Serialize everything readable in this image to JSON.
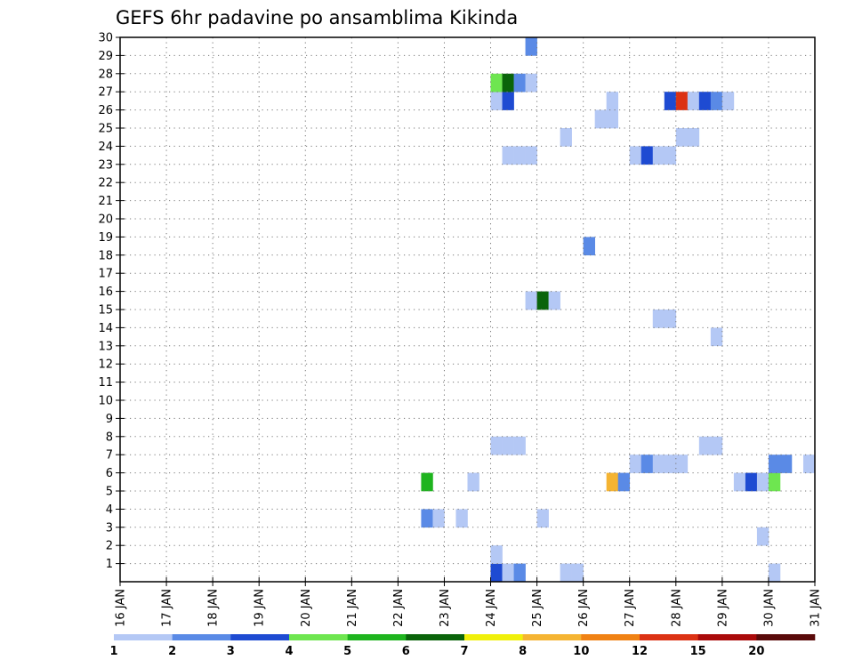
{
  "chart_data": {
    "type": "heatmap",
    "title": "GEFS 6hr padavine po ansamblima Kikinda",
    "xlabel": "",
    "ylabel": "",
    "x_ticks": [
      "16 JAN",
      "17 JAN",
      "18 JAN",
      "19 JAN",
      "20 JAN",
      "21 JAN",
      "22 JAN",
      "23 JAN",
      "24 JAN",
      "25 JAN",
      "26 JAN",
      "27 JAN",
      "28 JAN",
      "29 JAN",
      "30 JAN",
      "31 JAN"
    ],
    "xlim_days": [
      16,
      31
    ],
    "y_ticks": [
      1,
      2,
      3,
      4,
      5,
      6,
      7,
      8,
      9,
      10,
      11,
      12,
      13,
      14,
      15,
      16,
      17,
      18,
      19,
      20,
      21,
      22,
      23,
      24,
      25,
      26,
      27,
      28,
      29,
      30
    ],
    "ylim": [
      0,
      30
    ],
    "grid": true,
    "colorbar": {
      "labels": [
        "1",
        "2",
        "3",
        "4",
        "5",
        "6",
        "7",
        "8",
        "10",
        "12",
        "15",
        "20"
      ],
      "colors": [
        "#b4c8f5",
        "#5a8ae6",
        "#1e4bd2",
        "#6ee650",
        "#1eb41e",
        "#0a640a",
        "#f0f00a",
        "#f5b432",
        "#f08214",
        "#dc3214",
        "#aa0a0a",
        "#5a0a0a"
      ]
    },
    "cells_note": "each cell: day = start of 6-hour interval (fractional January day), member = ensemble member row, level = colorbar class index (0 = 1-2 ... 11 = 20+)",
    "cells": [
      {
        "day": 24.0,
        "member": 0,
        "level": 2
      },
      {
        "day": 24.25,
        "member": 0,
        "level": 0
      },
      {
        "day": 24.5,
        "member": 0,
        "level": 1
      },
      {
        "day": 25.5,
        "member": 0,
        "level": 0
      },
      {
        "day": 25.75,
        "member": 0,
        "level": 0
      },
      {
        "day": 30.0,
        "member": 0,
        "level": 0
      },
      {
        "day": 24.0,
        "member": 1,
        "level": 0
      },
      {
        "day": 29.75,
        "member": 2,
        "level": 0
      },
      {
        "day": 22.5,
        "member": 3,
        "level": 1
      },
      {
        "day": 22.75,
        "member": 3,
        "level": 0
      },
      {
        "day": 23.25,
        "member": 3,
        "level": 0
      },
      {
        "day": 25.0,
        "member": 3,
        "level": 0
      },
      {
        "day": 22.5,
        "member": 5,
        "level": 4
      },
      {
        "day": 23.5,
        "member": 5,
        "level": 0
      },
      {
        "day": 26.5,
        "member": 5,
        "level": 7
      },
      {
        "day": 26.75,
        "member": 5,
        "level": 1
      },
      {
        "day": 29.25,
        "member": 5,
        "level": 0
      },
      {
        "day": 29.5,
        "member": 5,
        "level": 2
      },
      {
        "day": 29.75,
        "member": 5,
        "level": 0
      },
      {
        "day": 30.0,
        "member": 5,
        "level": 3
      },
      {
        "day": 27.0,
        "member": 6,
        "level": 0
      },
      {
        "day": 27.25,
        "member": 6,
        "level": 1
      },
      {
        "day": 27.5,
        "member": 6,
        "level": 0
      },
      {
        "day": 27.75,
        "member": 6,
        "level": 0
      },
      {
        "day": 28.0,
        "member": 6,
        "level": 0
      },
      {
        "day": 30.0,
        "member": 6,
        "level": 1
      },
      {
        "day": 30.25,
        "member": 6,
        "level": 1
      },
      {
        "day": 30.75,
        "member": 6,
        "level": 0
      },
      {
        "day": 24.0,
        "member": 7,
        "level": 0
      },
      {
        "day": 24.25,
        "member": 7,
        "level": 0
      },
      {
        "day": 24.5,
        "member": 7,
        "level": 0
      },
      {
        "day": 28.5,
        "member": 7,
        "level": 0
      },
      {
        "day": 28.75,
        "member": 7,
        "level": 0
      },
      {
        "day": 28.75,
        "member": 13,
        "level": 0
      },
      {
        "day": 27.5,
        "member": 14,
        "level": 0
      },
      {
        "day": 27.75,
        "member": 14,
        "level": 0
      },
      {
        "day": 24.75,
        "member": 15,
        "level": 0
      },
      {
        "day": 25.0,
        "member": 15,
        "level": 5
      },
      {
        "day": 25.25,
        "member": 15,
        "level": 0
      },
      {
        "day": 26.0,
        "member": 18,
        "level": 1
      },
      {
        "day": 24.25,
        "member": 23,
        "level": 0
      },
      {
        "day": 24.5,
        "member": 23,
        "level": 0
      },
      {
        "day": 24.75,
        "member": 23,
        "level": 0
      },
      {
        "day": 27.0,
        "member": 23,
        "level": 0
      },
      {
        "day": 27.25,
        "member": 23,
        "level": 2
      },
      {
        "day": 27.5,
        "member": 23,
        "level": 0
      },
      {
        "day": 27.75,
        "member": 23,
        "level": 0
      },
      {
        "day": 25.5,
        "member": 24,
        "level": 0
      },
      {
        "day": 28.0,
        "member": 24,
        "level": 0
      },
      {
        "day": 28.25,
        "member": 24,
        "level": 0
      },
      {
        "day": 26.25,
        "member": 25,
        "level": 0
      },
      {
        "day": 26.5,
        "member": 25,
        "level": 0
      },
      {
        "day": 24.0,
        "member": 26,
        "level": 0
      },
      {
        "day": 24.25,
        "member": 26,
        "level": 2
      },
      {
        "day": 26.5,
        "member": 26,
        "level": 0
      },
      {
        "day": 27.75,
        "member": 26,
        "level": 2
      },
      {
        "day": 28.0,
        "member": 26,
        "level": 9
      },
      {
        "day": 28.25,
        "member": 26,
        "level": 0
      },
      {
        "day": 28.5,
        "member": 26,
        "level": 2
      },
      {
        "day": 28.75,
        "member": 26,
        "level": 1
      },
      {
        "day": 29.0,
        "member": 26,
        "level": 0
      },
      {
        "day": 24.0,
        "member": 27,
        "level": 3
      },
      {
        "day": 24.25,
        "member": 27,
        "level": 5
      },
      {
        "day": 24.5,
        "member": 27,
        "level": 1
      },
      {
        "day": 24.75,
        "member": 27,
        "level": 0
      },
      {
        "day": 24.75,
        "member": 29,
        "level": 1
      }
    ]
  }
}
